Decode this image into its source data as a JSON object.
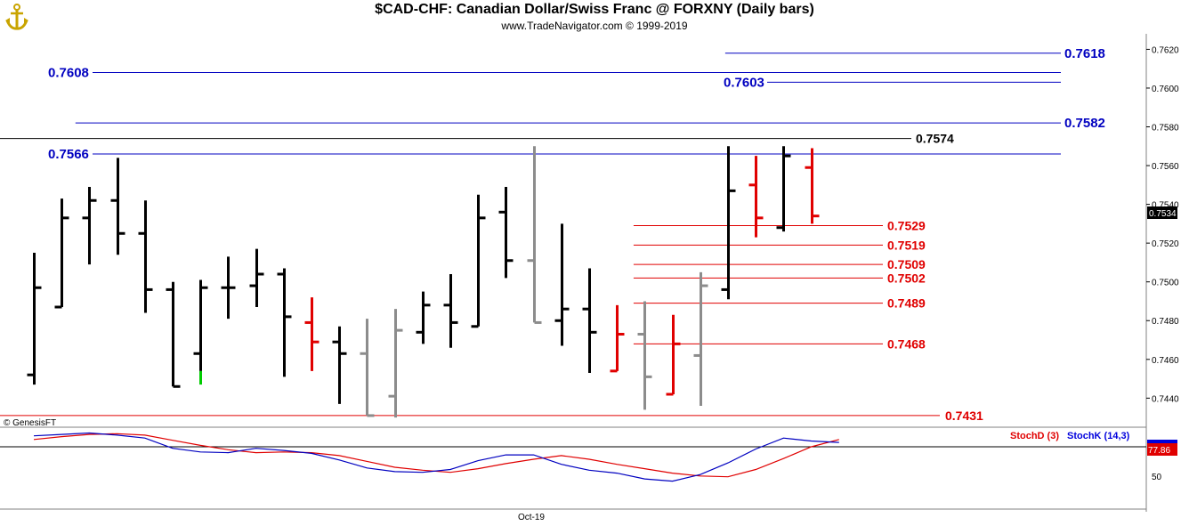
{
  "header": {
    "title": "$CAD-CHF:  Canadian Dollar/Swiss Franc @ FORXNY  (Daily bars)",
    "subtitle": "www.TradeNavigator.com © 1999-2019"
  },
  "logo_icon": "gold-anchor-icon",
  "copyright": "© GenesisFT",
  "colors": {
    "up_black": "#000000",
    "red": "#e00000",
    "gray": "#8c8c8c",
    "green": "#00cc00",
    "blue_line": "#0000c0",
    "red_line": "#e00000",
    "stochd": "#e00000",
    "stochk": "#0000dd"
  },
  "chart_data": [
    {
      "type": "ohlc",
      "title": "$CAD-CHF:  Canadian Dollar/Swiss Franc @ FORXNY  (Daily bars)",
      "ylim": [
        0.7425,
        0.7628
      ],
      "y_ticks": [
        "0.7440",
        "0.7460",
        "0.7480",
        "0.7500",
        "0.7520",
        "0.7540",
        "0.7560",
        "0.7580",
        "0.7600",
        "0.7620"
      ],
      "y_tick_values": [
        0.744,
        0.746,
        0.748,
        0.75,
        0.752,
        0.754,
        0.756,
        0.758,
        0.76,
        0.762
      ],
      "x_label": "Oct-19",
      "last_price": "0.7534",
      "bars": [
        {
          "i": 0,
          "o": 0.7452,
          "h": 0.7515,
          "l": 0.7447,
          "c": 0.7497,
          "color": "black"
        },
        {
          "i": 1,
          "o": 0.7487,
          "h": 0.7543,
          "l": 0.7487,
          "c": 0.7533,
          "color": "black"
        },
        {
          "i": 2,
          "o": 0.7533,
          "h": 0.7549,
          "l": 0.7509,
          "c": 0.7542,
          "color": "black"
        },
        {
          "i": 3,
          "o": 0.7542,
          "h": 0.7564,
          "l": 0.7514,
          "c": 0.7525,
          "color": "black"
        },
        {
          "i": 4,
          "o": 0.7525,
          "h": 0.7542,
          "l": 0.7484,
          "c": 0.7496,
          "color": "black"
        },
        {
          "i": 5,
          "o": 0.7496,
          "h": 0.75,
          "l": 0.7446,
          "c": 0.7446,
          "color": "black"
        },
        {
          "i": 6,
          "o": 0.7463,
          "h": 0.7501,
          "l": 0.7454,
          "c": 0.7497,
          "color": "black"
        },
        {
          "i": 6.05,
          "o": 0.7454,
          "h": 0.7454,
          "l": 0.7447,
          "c": 0.7447,
          "color": "green",
          "tick_only": true
        },
        {
          "i": 7,
          "o": 0.7497,
          "h": 0.7513,
          "l": 0.7481,
          "c": 0.7497,
          "color": "black"
        },
        {
          "i": 8,
          "o": 0.7498,
          "h": 0.7517,
          "l": 0.7487,
          "c": 0.7504,
          "color": "black"
        },
        {
          "i": 9,
          "o": 0.7504,
          "h": 0.7507,
          "l": 0.7451,
          "c": 0.7482,
          "color": "black"
        },
        {
          "i": 10,
          "o": 0.7479,
          "h": 0.7492,
          "l": 0.7454,
          "c": 0.7469,
          "color": "red"
        },
        {
          "i": 11,
          "o": 0.7469,
          "h": 0.7477,
          "l": 0.7437,
          "c": 0.7463,
          "color": "black"
        },
        {
          "i": 12,
          "o": 0.7463,
          "h": 0.7481,
          "l": 0.7431,
          "c": 0.7431,
          "color": "gray"
        },
        {
          "i": 13,
          "o": 0.7441,
          "h": 0.7486,
          "l": 0.743,
          "c": 0.7475,
          "color": "gray"
        },
        {
          "i": 14,
          "o": 0.7474,
          "h": 0.7495,
          "l": 0.7468,
          "c": 0.7488,
          "color": "black"
        },
        {
          "i": 15,
          "o": 0.7488,
          "h": 0.7504,
          "l": 0.7466,
          "c": 0.7479,
          "color": "black"
        },
        {
          "i": 16,
          "o": 0.7477,
          "h": 0.7545,
          "l": 0.7477,
          "c": 0.7533,
          "color": "black"
        },
        {
          "i": 17,
          "o": 0.7536,
          "h": 0.7549,
          "l": 0.7502,
          "c": 0.7511,
          "color": "black"
        },
        {
          "i": 18,
          "o": 0.7511,
          "h": 0.757,
          "l": 0.7479,
          "c": 0.7479,
          "color": "gray"
        },
        {
          "i": 19,
          "o": 0.748,
          "h": 0.753,
          "l": 0.7467,
          "c": 0.7486,
          "color": "black"
        },
        {
          "i": 20,
          "o": 0.7486,
          "h": 0.7507,
          "l": 0.7453,
          "c": 0.7474,
          "color": "black"
        },
        {
          "i": 21,
          "o": 0.7454,
          "h": 0.7488,
          "l": 0.7454,
          "c": 0.7473,
          "color": "red"
        },
        {
          "i": 22,
          "o": 0.7473,
          "h": 0.749,
          "l": 0.7434,
          "c": 0.7451,
          "color": "gray"
        },
        {
          "i": 23,
          "o": 0.7442,
          "h": 0.7483,
          "l": 0.7442,
          "c": 0.7468,
          "color": "red"
        },
        {
          "i": 24,
          "o": 0.7462,
          "h": 0.7505,
          "l": 0.7436,
          "c": 0.7498,
          "color": "gray"
        },
        {
          "i": 25,
          "o": 0.7496,
          "h": 0.757,
          "l": 0.7491,
          "c": 0.7547,
          "color": "black"
        },
        {
          "i": 26,
          "o": 0.755,
          "h": 0.7565,
          "l": 0.7523,
          "c": 0.7533,
          "color": "red"
        },
        {
          "i": 27,
          "o": 0.7528,
          "h": 0.757,
          "l": 0.7526,
          "c": 0.7565,
          "color": "black"
        },
        {
          "i": 28,
          "o": 0.7559,
          "h": 0.7569,
          "l": 0.753,
          "c": 0.7534,
          "color": "red"
        }
      ],
      "levels": [
        {
          "value": 0.7618,
          "label": "0.7618",
          "color": "blue",
          "label_side": "right",
          "from_i": 24.9
        },
        {
          "value": 0.7608,
          "label": "0.7608",
          "color": "blue",
          "label_side": "left",
          "from_i": -1.5
        },
        {
          "value": 0.7603,
          "label": "0.7603",
          "color": "blue",
          "label_side": "mid",
          "from_i": 24.9
        },
        {
          "value": 0.7582,
          "label": "0.7582",
          "color": "blue",
          "label_side": "right",
          "from_i": 1.5
        },
        {
          "value": 0.7574,
          "label": "0.7574",
          "color": "black",
          "label_side": "mid2",
          "from_i": -1.5
        },
        {
          "value": 0.7566,
          "label": "0.7566",
          "color": "blue",
          "label_side": "left",
          "from_i": -1.5
        },
        {
          "value": 0.7529,
          "label": "0.7529",
          "color": "red",
          "label_side": "redr",
          "from_i": 21.6
        },
        {
          "value": 0.7519,
          "label": "0.7519",
          "color": "red",
          "label_side": "redr",
          "from_i": 21.6
        },
        {
          "value": 0.7509,
          "label": "0.7509",
          "color": "red",
          "label_side": "redr",
          "from_i": 21.6
        },
        {
          "value": 0.7502,
          "label": "0.7502",
          "color": "red",
          "label_side": "redr",
          "from_i": 21.6
        },
        {
          "value": 0.7489,
          "label": "0.7489",
          "color": "red",
          "label_side": "redr",
          "from_i": 21.6
        },
        {
          "value": 0.7468,
          "label": "0.7468",
          "color": "red",
          "label_side": "redr",
          "from_i": 21.6
        },
        {
          "value": 0.7431,
          "label": "0.7431",
          "color": "red",
          "label_side": "red_far",
          "from_i": -1.5
        }
      ]
    },
    {
      "type": "line",
      "series": [
        {
          "name": "StochD (3)",
          "color": "red",
          "values": [
            88,
            92,
            95,
            96,
            94,
            87,
            80,
            74,
            70,
            71,
            70,
            66,
            58,
            50,
            46,
            43,
            48,
            55,
            61,
            66,
            61,
            54,
            48,
            42,
            38,
            37,
            47,
            62,
            78,
            88
          ]
        },
        {
          "name": "StochK (14,3)",
          "color": "blue",
          "values": [
            93,
            95,
            97,
            94,
            90,
            76,
            71,
            70,
            76,
            73,
            69,
            60,
            49,
            44,
            43,
            47,
            59,
            67,
            67,
            54,
            46,
            42,
            34,
            31,
            40,
            56,
            75,
            90,
            86,
            84
          ]
        }
      ],
      "ylim": [
        0,
        100
      ],
      "y_ticks": [
        "50"
      ],
      "last_value": "77.86"
    }
  ]
}
